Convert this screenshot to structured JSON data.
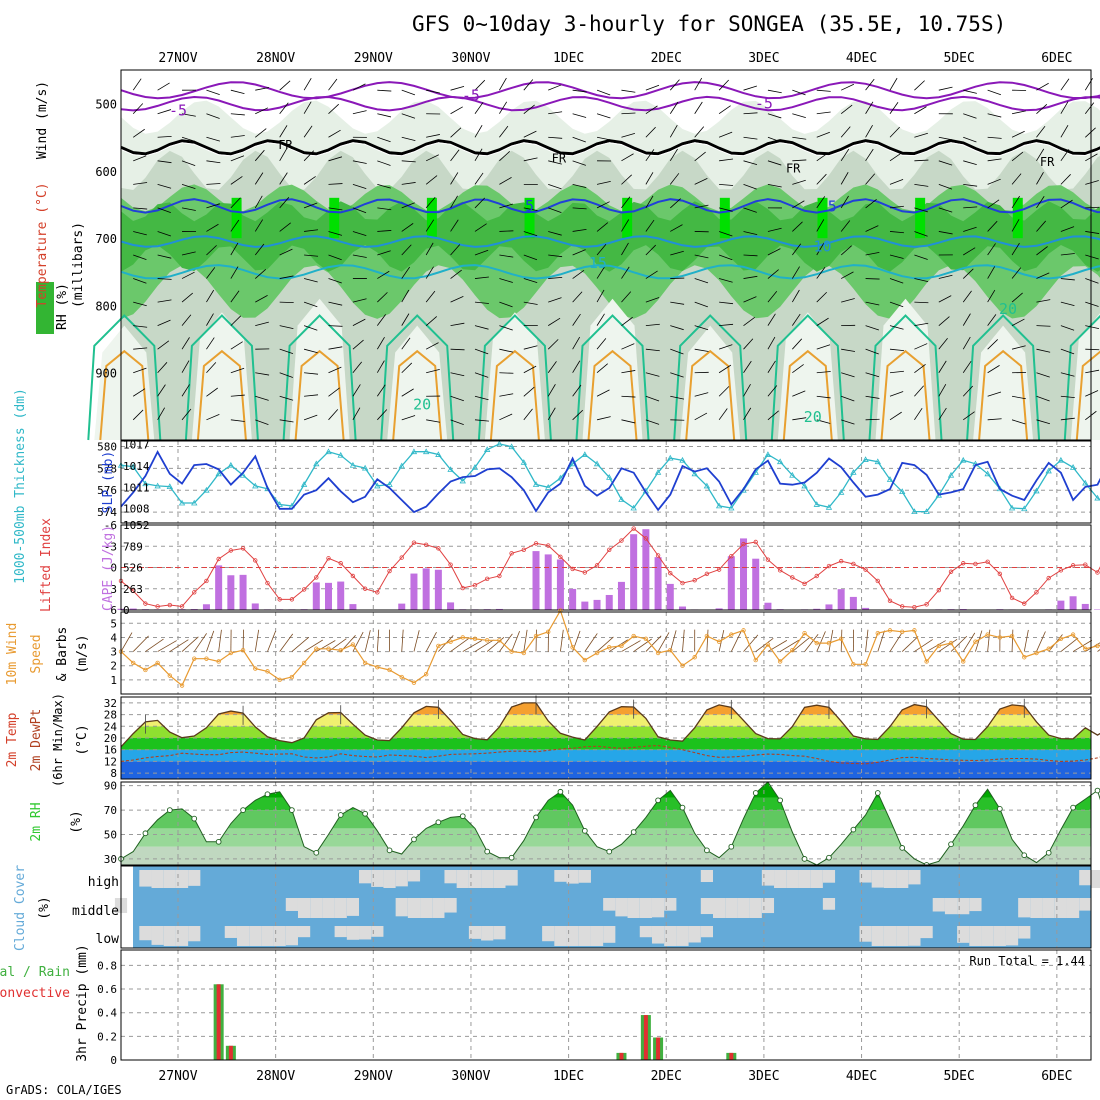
{
  "title": "GFS 0~10day 3-hourly for SONGEA (35.5E, 10.75S)",
  "credit": "GrADS: COLA/IGES",
  "run_total": "Run Total = 1.44",
  "colors": {
    "rh": "#33b533",
    "temp": "#d4402a",
    "wind_label": "#000000",
    "lifted": "#e04040",
    "cape": "#c070e0",
    "wind10": "#e89a30",
    "slp": "#1f3fd0",
    "thick": "#30b8c8",
    "precip_total": "#40b040",
    "precip_conv": "#e03030",
    "cloud": "#64aad8",
    "rh2m": "#30c830",
    "freezing": "#000000"
  },
  "chart_data": [
    {
      "type": "heatmap",
      "panel": "upper-air",
      "ylabel_parts": [
        "RH (%)",
        "Temperature (°C)",
        "Wind (m/s)"
      ],
      "ylabel_units": "(millibars)",
      "x_dates": [
        "27NOV",
        "28NOV",
        "29NOV",
        "30NOV",
        "1DEC",
        "2DEC",
        "3DEC",
        "4DEC",
        "5DEC",
        "6DEC"
      ],
      "y_ticks": [
        500,
        600,
        700,
        800,
        900
      ],
      "ylim": [
        1000,
        450
      ],
      "contour_labels": [
        {
          "text": "-5",
          "level": -5,
          "x_day": 0.0,
          "y_mb": 510
        },
        {
          "text": "-5",
          "level": -5,
          "x_day": 3.0,
          "y_mb": 488
        },
        {
          "text": "-5",
          "level": -5,
          "x_day": 6.0,
          "y_mb": 500
        },
        {
          "text": "FR",
          "level": 0,
          "x_day": 1.1,
          "y_mb": 560
        },
        {
          "text": "FR",
          "level": 0,
          "x_day": 3.9,
          "y_mb": 580
        },
        {
          "text": "FR",
          "level": 0,
          "x_day": 6.3,
          "y_mb": 595
        },
        {
          "text": "FR",
          "level": 0,
          "x_day": 8.9,
          "y_mb": 585
        },
        {
          "text": "5",
          "level": 5,
          "x_day": 3.6,
          "y_mb": 652
        },
        {
          "text": "5",
          "level": 5,
          "x_day": 6.7,
          "y_mb": 653
        },
        {
          "text": "10",
          "level": 10,
          "x_day": 6.6,
          "y_mb": 712
        },
        {
          "text": "15",
          "level": 15,
          "x_day": 4.3,
          "y_mb": 737
        },
        {
          "text": "20",
          "level": 20,
          "x_day": 8.5,
          "y_mb": 805
        },
        {
          "text": "20",
          "level": 20,
          "x_day": 2.5,
          "y_mb": 947
        },
        {
          "text": "20",
          "level": 20,
          "x_day": 6.5,
          "y_mb": 966
        }
      ]
    },
    {
      "type": "line",
      "panel": "thickness-slp",
      "ylabel_left": "1000-500mb Thickness (dm)",
      "ylabel_right": "SLP (mb)",
      "y_ticks_left": [
        574,
        576,
        578,
        580
      ],
      "y_ticks_right": [
        1008,
        1011,
        1014,
        1017
      ],
      "ylim_left": [
        573,
        580.5
      ],
      "ylim_right": [
        1006,
        1017.5
      ],
      "series": [
        {
          "name": "1000-500mb Thickness",
          "axis": "left",
          "values": [
            574.5,
            575.8,
            577.3,
            579.5,
            577.5,
            576.6,
            578.3,
            578.4,
            577.9,
            576.5,
            577.6,
            579.1,
            576.2,
            574.3,
            574.3,
            575.6,
            576.0,
            577.1,
            575.9,
            574.9,
            575.4,
            577.0,
            576.2,
            575.1,
            574.0,
            574.5,
            575.7,
            576.8,
            577.2,
            577.3,
            577.9,
            578.0,
            577.2,
            576.0,
            574.1,
            575.8,
            576.6,
            578.9,
            576.4,
            575.5,
            576.2,
            578.0,
            577.6,
            575.8,
            574.2,
            575.6,
            578.2,
            577.7,
            578.0,
            576.8,
            574.7,
            576.1,
            577.9,
            578.7,
            576.6,
            576.5,
            576.7,
            577.6,
            578.9,
            578.1,
            576.7,
            575.4,
            575.6,
            576.1,
            578.5,
            578.3,
            577.4,
            575.6,
            575.8,
            576.1,
            578.3,
            578.6,
            576.1,
            575.5,
            575.1,
            576.9,
            578.5,
            577.6,
            575.1,
            576.3,
            576.5,
            578.7
          ]
        },
        {
          "name": "SLP",
          "axis": "right",
          "values": [
            1014.1,
            1013.9,
            1011.5,
            1011.2,
            1011.1,
            1008.8,
            1008.8,
            1010.6,
            1012.9,
            1014.1,
            1012.7,
            1011.2,
            1010.8,
            1008.6,
            1008.4,
            1011.4,
            1014.3,
            1016.0,
            1015.5,
            1014.1,
            1013.7,
            1011.2,
            1011.4,
            1014.0,
            1016.0,
            1016.0,
            1015.6,
            1013.5,
            1011.9,
            1013.8,
            1016.3,
            1017.1,
            1016.7,
            1014.5,
            1011.4,
            1011.0,
            1012.3,
            1014.3,
            1015.6,
            1014.3,
            1012.4,
            1009.3,
            1008.1,
            1010.5,
            1013.1,
            1015.1,
            1014.8,
            1012.9,
            1011.2,
            1008.4,
            1008.1,
            1010.6,
            1013.1,
            1015.6,
            1014.6,
            1012.7,
            1011.2,
            1008.6,
            1008.2,
            1010.3,
            1013.1,
            1014.9,
            1014.6,
            1012.1,
            1010.4,
            1007.6,
            1007.6,
            1009.9,
            1012.7,
            1014.8,
            1014.3,
            1012.9,
            1010.8,
            1008.1,
            1008.0,
            1010.5,
            1013.3,
            1014.8,
            1013.8,
            1011.6,
            1009.5,
            1008.3
          ]
        }
      ]
    },
    {
      "type": "bar",
      "panel": "cape-li",
      "ylabel_left": "Lifted Index",
      "ylabel_right": "CAPE (J/kg)",
      "y_ticks_left": [
        -6,
        -3,
        0,
        3,
        6
      ],
      "y_ticks_right": [
        0,
        263,
        526,
        789,
        1052
      ],
      "ylim_right": [
        0,
        1052
      ],
      "series": [
        {
          "name": "CAPE",
          "axis": "right",
          "values": [
            15,
            18,
            10,
            8,
            5,
            10,
            12,
            71,
            552,
            430,
            435,
            81,
            8,
            9,
            8,
            10,
            341,
            336,
            352,
            73,
            5,
            5,
            5,
            79,
            451,
            515,
            498,
            94,
            9,
            8,
            10,
            13,
            4,
            6,
            729,
            688,
            625,
            261,
            104,
            125,
            186,
            348,
            938,
            1000,
            654,
            323,
            43,
            7,
            5,
            20,
            665,
            886,
            635,
            90,
            10,
            6,
            8,
            15,
            69,
            258,
            162,
            26,
            5,
            5,
            5,
            7,
            5,
            8,
            10,
            12,
            4,
            6,
            10,
            7,
            7,
            6,
            8,
            116,
            170,
            75,
            6,
            227
          ]
        },
        {
          "name": "Lifted Index",
          "axis": "left",
          "values": [
            1.9,
            3.3,
            5.1,
            5.5,
            5.3,
            5.5,
            3.5,
            1.9,
            -1.2,
            -2.4,
            -2.7,
            -1.0,
            2.2,
            4.5,
            4.5,
            3.1,
            1.4,
            -1.3,
            -0.6,
            1.2,
            3.0,
            3.5,
            0.5,
            -1.4,
            -3.5,
            -3.2,
            -2.7,
            -0.4,
            2.9,
            2.5,
            1.6,
            1.2,
            -2.0,
            -2.5,
            -3.4,
            -3.1,
            -1.5,
            0.2,
            0.7,
            -0.3,
            -2.5,
            -3.8,
            -5.5,
            -4.1,
            -1.7,
            0.8,
            2.2,
            1.8,
            0.9,
            0.3,
            -1.6,
            -3.3,
            -3.6,
            -1.1,
            0.4,
            1.4,
            2.3,
            1.2,
            -0.2,
            -0.9,
            -0.5,
            0.3,
            1.9,
            4.7,
            5.5,
            5.6,
            5.2,
            3.2,
            0.6,
            -0.6,
            -0.5,
            -0.8,
            0.9,
            4.3,
            5.1,
            3.5,
            1.5,
            0.4,
            -0.3,
            -0.4,
            0.7,
            -2.8
          ]
        }
      ]
    },
    {
      "type": "line",
      "panel": "wind10m",
      "ylabel": "10m Wind Speed & Barbs (m/s)",
      "y_ticks": [
        1,
        2,
        3,
        4,
        5
      ],
      "ylim": [
        0,
        5.8
      ],
      "series": [
        {
          "name": "10m Wind Speed",
          "values": [
            3.0,
            2.2,
            1.7,
            2.2,
            1.3,
            0.6,
            2.5,
            2.5,
            2.3,
            2.9,
            3.1,
            1.8,
            1.6,
            1.0,
            1.2,
            2.2,
            3.2,
            3.2,
            3.1,
            3.5,
            2.2,
            1.9,
            1.7,
            1.2,
            0.8,
            1.4,
            3.4,
            3.7,
            4.0,
            3.9,
            3.8,
            3.8,
            3.0,
            2.9,
            4.1,
            4.4,
            5.9,
            3.3,
            2.4,
            2.9,
            3.3,
            3.4,
            4.1,
            3.9,
            2.9,
            3.1,
            2.0,
            2.6,
            4.1,
            3.7,
            4.2,
            4.5,
            2.4,
            3.5,
            2.3,
            3.1,
            4.3,
            3.6,
            3.6,
            3.9,
            2.1,
            2.1,
            4.3,
            4.5,
            4.4,
            4.5,
            2.3,
            3.4,
            3.6,
            2.3,
            3.7,
            4.2,
            4.0,
            4.1,
            2.6,
            2.9,
            3.2,
            3.9,
            4.2,
            3.2,
            3.4,
            3.6
          ]
        }
      ]
    },
    {
      "type": "area",
      "panel": "temp2m",
      "ylabel": "2m Temp 2m DewPt (6hr Min/Max) (°C)",
      "y_ticks": [
        8,
        12,
        16,
        20,
        24,
        28,
        32
      ],
      "ylim": [
        6,
        34
      ],
      "series": [
        {
          "name": "2m Temp",
          "values": [
            17.0,
            21.5,
            25.5,
            26.0,
            22.0,
            20.1,
            20.7,
            23.5,
            28.2,
            29.2,
            28.5,
            23.8,
            20.4,
            19.1,
            18.4,
            20.0,
            26.2,
            28.6,
            28.7,
            24.7,
            21.0,
            19.3,
            19.1,
            23.5,
            28.6,
            30.8,
            30.5,
            26.0,
            21.2,
            19.8,
            19.4,
            23.8,
            30.6,
            32.0,
            32.0,
            25.8,
            21.6,
            20.3,
            19.3,
            23.9,
            28.9,
            30.7,
            30.6,
            26.7,
            20.4,
            19.3,
            18.9,
            23.5,
            29.6,
            31.3,
            30.5,
            26.0,
            21.5,
            19.8,
            19.7,
            23.9,
            30.5,
            31.2,
            30.5,
            25.7,
            20.7,
            19.7,
            19.5,
            23.9,
            29.6,
            31.4,
            30.7,
            26.0,
            21.5,
            19.6,
            19.5,
            23.9,
            29.9,
            31.3,
            30.9,
            25.5,
            21.0,
            19.8,
            19.7,
            23.5,
            21.0,
            23.5
          ]
        },
        {
          "name": "2m DewPt",
          "values": [
            12.0,
            12.5,
            13.2,
            13.7,
            14.0,
            14.8,
            14.5,
            14.3,
            14.3,
            15.0,
            15.2,
            14.8,
            14.4,
            14.5,
            14.6,
            13.5,
            13.2,
            13.5,
            14.6,
            14.0,
            13.7,
            13.5,
            14.2,
            14.0,
            13.8,
            13.3,
            13.8,
            14.4,
            14.5,
            14.6,
            14.8,
            15.2,
            15.5,
            15.5,
            15.3,
            15.8,
            16.2,
            16.5,
            17.0,
            17.2,
            16.8,
            16.5,
            16.8,
            17.2,
            17.4,
            16.8,
            16.0,
            15.0,
            14.0,
            13.4,
            13.5,
            13.8,
            14.2,
            14.5,
            14.4,
            14.0,
            13.8,
            13.0,
            12.0,
            11.5,
            11.3,
            11.2,
            11.7,
            12.5,
            13.3,
            13.4,
            13.0,
            12.8,
            12.5,
            12.4,
            12.3,
            12.5,
            12.8,
            13.0,
            13.0,
            12.8,
            12.3,
            12.0,
            12.1,
            12.5,
            13.2,
            14.5
          ]
        }
      ]
    },
    {
      "type": "area",
      "panel": "rh2m",
      "ylabel": "2m RH (%)",
      "y_ticks": [
        30,
        50,
        70,
        90
      ],
      "ylim": [
        25,
        93
      ],
      "series": [
        {
          "name": "2m RH",
          "values": [
            30,
            36,
            51,
            62,
            70,
            71,
            63,
            44,
            44,
            59,
            70,
            78,
            83,
            85,
            70,
            40,
            35,
            50,
            66,
            72,
            67,
            53,
            37,
            34,
            46,
            55,
            60,
            64,
            65,
            55,
            36,
            31,
            31,
            45,
            64,
            78,
            85,
            74,
            53,
            40,
            36,
            42,
            52,
            64,
            78,
            86,
            72,
            51,
            37,
            31,
            40,
            63,
            84,
            93,
            78,
            52,
            30,
            25,
            31,
            42,
            54,
            66,
            84,
            62,
            39,
            30,
            25,
            28,
            42,
            57,
            74,
            87,
            71,
            46,
            33,
            27,
            35,
            54,
            72,
            79,
            86,
            54
          ]
        }
      ]
    },
    {
      "type": "heatmap",
      "panel": "cloud",
      "ylabel": "Cloud Cover (%)",
      "layer_labels": [
        "high",
        "middle",
        "low"
      ],
      "note": "cloud cover per layer shown as light-grey fill over blue background"
    },
    {
      "type": "bar",
      "panel": "precip",
      "ylabel_left": "Total / Rain",
      "ylabel_left2": "Convective",
      "ylabel": "3hr Precip (mm)",
      "y_ticks": [
        0,
        0.2,
        0.4,
        0.6,
        0.8
      ],
      "ylim": [
        0,
        0.93
      ],
      "annotation": "Run Total = 1.44",
      "series": [
        {
          "name": "Precip",
          "values": [
            0,
            0,
            0,
            0,
            0,
            0,
            0,
            0,
            0.64,
            0.12,
            0,
            0,
            0,
            0,
            0,
            0,
            0,
            0,
            0,
            0,
            0,
            0,
            0,
            0,
            0,
            0,
            0,
            0,
            0,
            0,
            0,
            0,
            0,
            0,
            0,
            0,
            0,
            0,
            0,
            0,
            0,
            0.06,
            0,
            0.38,
            0.19,
            0,
            0,
            0,
            0,
            0,
            0.06,
            0,
            0,
            0,
            0,
            0,
            0,
            0,
            0,
            0,
            0,
            0,
            0,
            0,
            0,
            0,
            0,
            0,
            0,
            0,
            0,
            0,
            0,
            0,
            0,
            0,
            0,
            0,
            0,
            0,
            0,
            0
          ]
        }
      ]
    }
  ]
}
